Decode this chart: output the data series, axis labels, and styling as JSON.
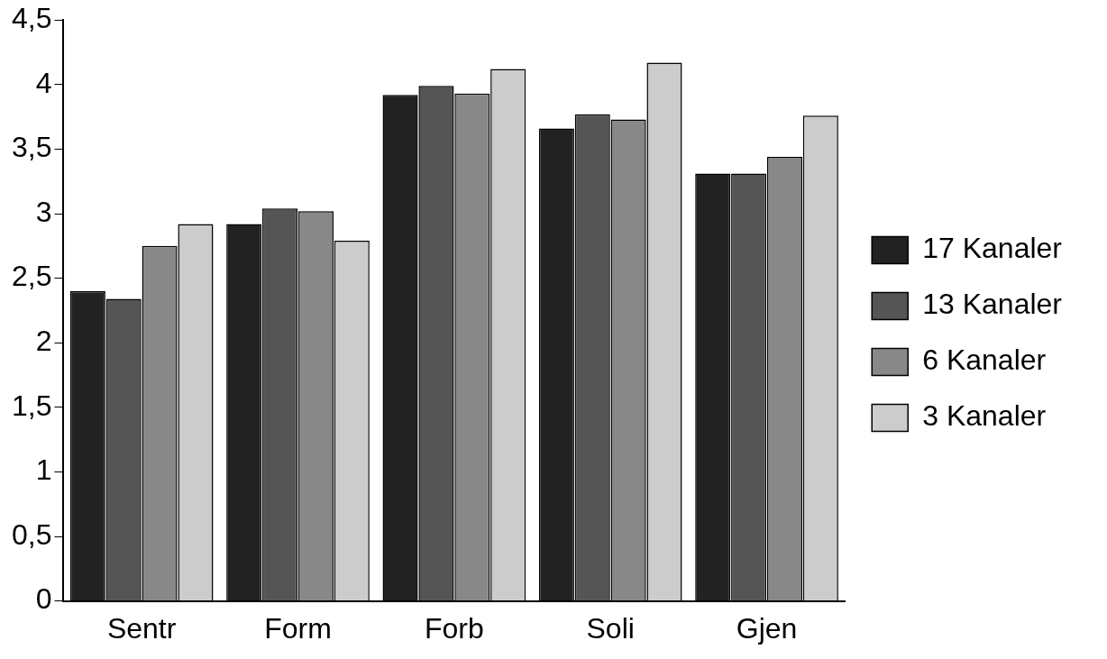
{
  "chart_data": {
    "type": "bar",
    "categories": [
      "Sentr",
      "Form",
      "Forb",
      "Soli",
      "Gjen"
    ],
    "series": [
      {
        "name": "17 Kanaler",
        "color": "#222222",
        "values": [
          2.4,
          2.92,
          3.92,
          3.66,
          3.31
        ]
      },
      {
        "name": "13 Kanaler",
        "color": "#555555",
        "values": [
          2.34,
          3.04,
          3.99,
          3.77,
          3.31
        ]
      },
      {
        "name": "6 Kanaler",
        "color": "#888888",
        "values": [
          2.75,
          3.02,
          3.93,
          3.73,
          3.44
        ]
      },
      {
        "name": "3 Kanaler",
        "color": "#cccccc",
        "values": [
          2.92,
          2.79,
          4.12,
          4.17,
          3.76
        ]
      }
    ],
    "ylim": [
      0,
      4.5
    ],
    "yticks": [
      0,
      {
        "value": 0.5,
        "label": "0,5"
      },
      1,
      {
        "value": 1.5,
        "label": "1,5"
      },
      2,
      {
        "value": 2.5,
        "label": "2,5"
      },
      3,
      {
        "value": 3.5,
        "label": "3,5"
      },
      4,
      {
        "value": 4.5,
        "label": "4,5"
      }
    ],
    "grid": false,
    "legend": "right"
  }
}
